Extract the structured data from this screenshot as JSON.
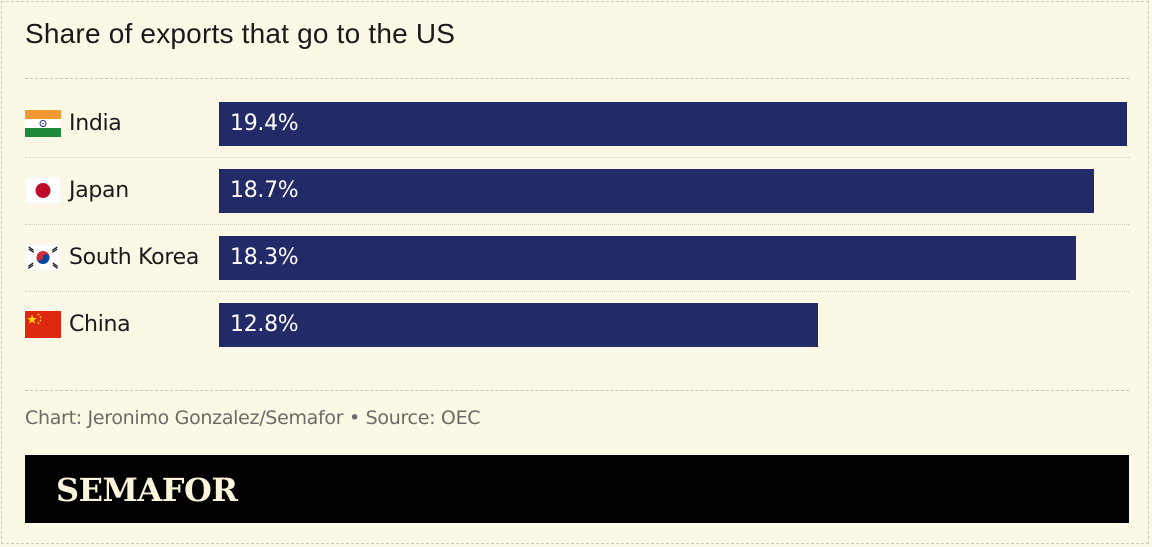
{
  "title": "Share of exports that go to the US",
  "chart_data": {
    "type": "bar",
    "orientation": "horizontal",
    "title": "Share of exports that go to the US",
    "categories": [
      "India",
      "Japan",
      "South Korea",
      "China"
    ],
    "values": [
      19.4,
      18.7,
      18.3,
      12.8
    ],
    "value_labels": [
      "19.4%",
      "18.7%",
      "18.3%",
      "12.8%"
    ],
    "unit": "%",
    "xlim": [
      0,
      19.4
    ],
    "bar_color": "#222a68",
    "grid": false
  },
  "rows": [
    {
      "country": "India",
      "flag_icon": "india-flag-icon",
      "value_label": "19.4%"
    },
    {
      "country": "Japan",
      "flag_icon": "japan-flag-icon",
      "value_label": "18.7%"
    },
    {
      "country": "South Korea",
      "flag_icon": "south-korea-flag-icon",
      "value_label": "18.3%"
    },
    {
      "country": "China",
      "flag_icon": "china-flag-icon",
      "value_label": "12.8%"
    }
  ],
  "credit": "Chart: Jeronimo Gonzalez/Semafor • Source: OEC",
  "brand": "SEMAFOR",
  "colors": {
    "background": "#fbf8e6",
    "bar": "#222a68",
    "brand_bar": "#000000",
    "brand_text": "#fbf5dc"
  }
}
